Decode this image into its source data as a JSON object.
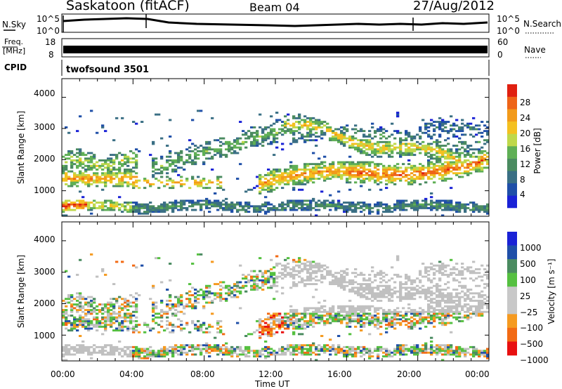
{
  "header": {
    "station": "Saskatoon (fitACF)",
    "beam": "Beam 04",
    "date": "27/Aug/2012"
  },
  "top_panels": {
    "nsky_label": "N.Sky",
    "nsky_ticks": [
      "10^5",
      "10^0"
    ],
    "nsearch_label": "N.Search",
    "nsearch_ticks": [
      "10^5",
      "10^0"
    ],
    "freq_label_1": "Freq.",
    "freq_label_2": "[MHz]",
    "freq_ticks": [
      "18",
      "8"
    ],
    "nave_label": "Nave",
    "nave_ticks": [
      "60",
      "0"
    ],
    "cpid_label": "CPID",
    "cpid_text": "twofsound 3501"
  },
  "colors": {
    "power": [
      "#1a22d6",
      "#1f4fa8",
      "#3a6f84",
      "#4a8b60",
      "#5faf55",
      "#bfd84a",
      "#f4c020",
      "#f29a1a",
      "#ee6418",
      "#e02010"
    ],
    "velocity": [
      "#e81010",
      "#f26a14",
      "#f59a20",
      "#c8c8c8",
      "#c8c8c8",
      "#55c040",
      "#4a8b60",
      "#1f4fa8",
      "#1a22d6"
    ],
    "ground": "#c0c0c0"
  },
  "chart_data": [
    {
      "type": "heatmap",
      "name": "power",
      "xlabel": "",
      "ylabel": "Slant Range [km]",
      "xlim": [
        0,
        24
      ],
      "ylim": [
        180,
        4600
      ],
      "yticks": [
        "1000",
        "2000",
        "3000",
        "4000"
      ],
      "colorbar": {
        "label": "Power [dB]",
        "range": [
          0,
          32
        ],
        "ticks": [
          "4",
          "8",
          "12",
          "16",
          "20",
          "24",
          "28"
        ]
      }
    },
    {
      "type": "heatmap",
      "name": "velocity",
      "xlabel": "Time UT",
      "ylabel": "Slant Range [km]",
      "xlim": [
        0,
        24
      ],
      "ylim": [
        180,
        4600
      ],
      "xticks": [
        "00:00",
        "04:00",
        "08:00",
        "12:00",
        "16:00",
        "20:00",
        "00:00"
      ],
      "yticks": [
        "1000",
        "2000",
        "3000",
        "4000"
      ],
      "colorbar": {
        "label": "Velocity [m s⁻¹]",
        "ticks": [
          "1000",
          "500",
          "100",
          "25",
          "−25",
          "−100",
          "−500",
          "−1000"
        ]
      }
    }
  ]
}
